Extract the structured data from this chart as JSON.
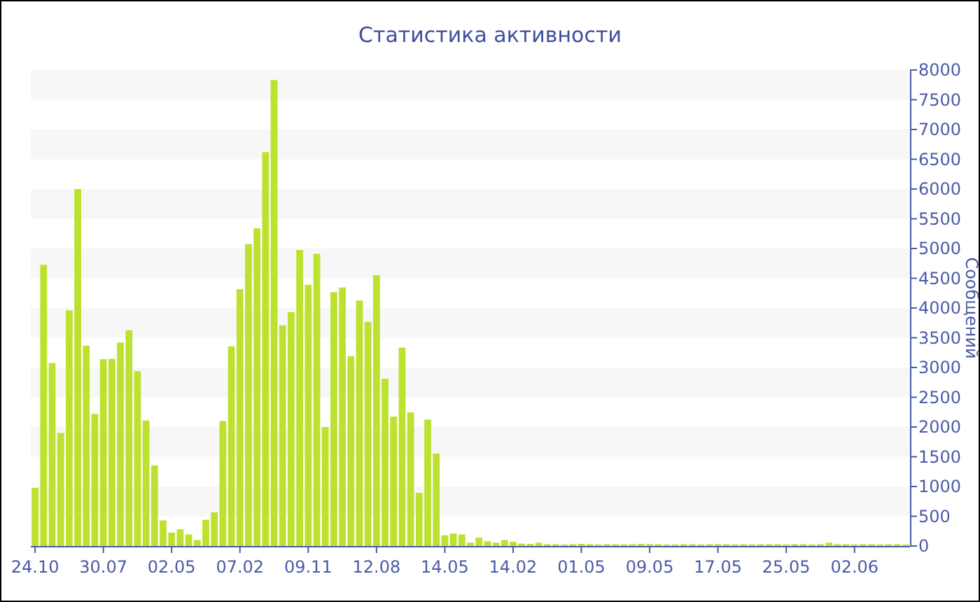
{
  "chart_data": {
    "type": "bar",
    "title": "Статистика активности",
    "ylabel": "Сообщений",
    "color": "#bde12f",
    "categories": [
      "24.10",
      null,
      null,
      null,
      null,
      null,
      null,
      null,
      "30.07",
      null,
      null,
      null,
      null,
      null,
      null,
      null,
      "02.05",
      null,
      null,
      null,
      null,
      null,
      null,
      null,
      "07.02",
      null,
      null,
      null,
      null,
      null,
      null,
      null,
      "09.11",
      null,
      null,
      null,
      null,
      null,
      null,
      null,
      "12.08",
      null,
      null,
      null,
      null,
      null,
      null,
      null,
      "14.05",
      null,
      null,
      null,
      null,
      null,
      null,
      null,
      "14.02",
      null,
      null,
      null,
      null,
      null,
      null,
      null,
      "01.05",
      null,
      null,
      null,
      null,
      null,
      null,
      null,
      "09.05",
      null,
      null,
      null,
      null,
      null,
      null,
      null,
      "17.05",
      null,
      null,
      null,
      null,
      null,
      null,
      null,
      "25.05",
      null,
      null,
      null,
      null,
      null,
      null,
      null,
      "02.06",
      null,
      null,
      null,
      null,
      null,
      null
    ],
    "values": [
      975,
      4725,
      3075,
      1900,
      3960,
      6000,
      3365,
      2220,
      3140,
      3145,
      3420,
      3625,
      2940,
      2110,
      1355,
      430,
      225,
      280,
      195,
      100,
      440,
      565,
      2100,
      3355,
      4315,
      5075,
      5340,
      6620,
      7830,
      3710,
      3930,
      4975,
      4390,
      4910,
      2000,
      4265,
      4345,
      3190,
      4125,
      3765,
      4550,
      2810,
      2175,
      3335,
      2245,
      895,
      2125,
      1555,
      180,
      210,
      195,
      55,
      140,
      80,
      55,
      100,
      70,
      40,
      35,
      55,
      30,
      30,
      25,
      30,
      35,
      30,
      25,
      30,
      30,
      25,
      30,
      35,
      30,
      30,
      25,
      25,
      30,
      30,
      25,
      30,
      30,
      30,
      25,
      30,
      25,
      30,
      30,
      30,
      25,
      30,
      30,
      25,
      30,
      55,
      30,
      30,
      25,
      30,
      30,
      25,
      30,
      30,
      25
    ],
    "ylim": [
      0,
      8000
    ],
    "yticks": [
      0,
      500,
      1000,
      1500,
      2000,
      2500,
      3000,
      3500,
      4000,
      4500,
      5000,
      5500,
      6000,
      6500,
      7000,
      7500,
      8000
    ],
    "bands": [
      {
        "axis": "y",
        "from": 500,
        "to": 1000,
        "color": "#f7f7f7"
      },
      {
        "axis": "y",
        "from": 1500,
        "to": 2000,
        "color": "#f7f7f7"
      },
      {
        "axis": "y",
        "from": 2500,
        "to": 3000,
        "color": "#f7f7f7"
      },
      {
        "axis": "y",
        "from": 3500,
        "to": 4000,
        "color": "#f7f7f7"
      },
      {
        "axis": "y",
        "from": 4500,
        "to": 5000,
        "color": "#f7f7f7"
      },
      {
        "axis": "y",
        "from": 5500,
        "to": 6000,
        "color": "#f7f7f7"
      },
      {
        "axis": "y",
        "from": 6500,
        "to": 7000,
        "color": "#f7f7f7"
      },
      {
        "axis": "y",
        "from": 7500,
        "to": 8000,
        "color": "#f7f7f7"
      }
    ]
  }
}
